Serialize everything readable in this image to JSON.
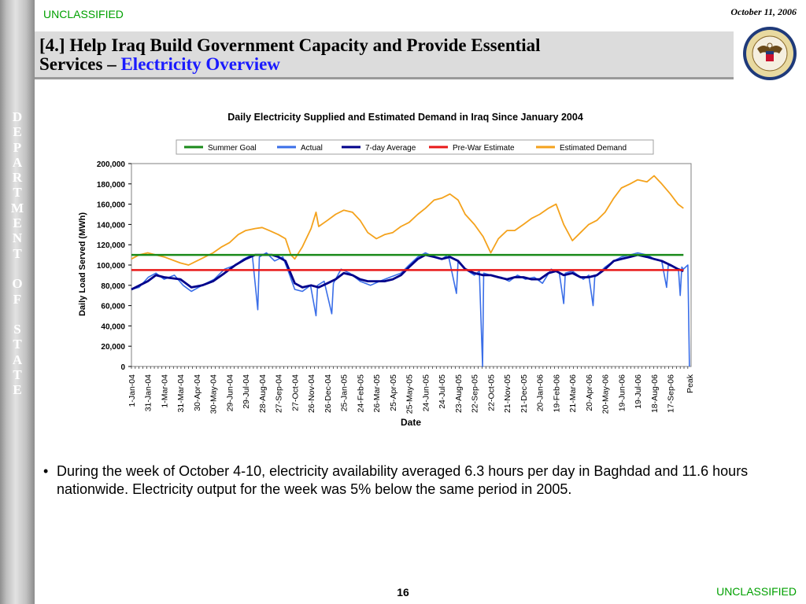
{
  "header": {
    "classification_top": "UNCLASSIFIED",
    "date": "October 11, 2006",
    "title_line1": "[4.] Help Iraq Build Government Capacity and Provide Essential",
    "title_line2_prefix": "Services – ",
    "title_line2_highlight": "Electricity Overview",
    "seal_label": "Department of State seal"
  },
  "sidebar": {
    "text": "DEPARTMENT OF STATE"
  },
  "bullet": {
    "text": "During the week of October 4-10, electricity availability averaged 6.3 hours per day in Baghdad and 11.6 hours nationwide.  Electricity output for the week was 5% below the same period in 2005."
  },
  "footer": {
    "page_number": "16",
    "classification_bottom": "UNCLASSIFIED"
  },
  "colors": {
    "summer_goal": "#1a8a1a",
    "actual": "#3a6ee8",
    "seven_day": "#00008b",
    "pre_war": "#e81818",
    "demand": "#f4a21c",
    "classification": "#00a000",
    "title_highlight": "#1a1aff"
  },
  "chart_data": {
    "type": "line",
    "title": "Daily Electricity Supplied and Estimated Demand in Iraq Since January 2004",
    "xlabel": "Date",
    "ylabel": "Daily Load Served (MWh)",
    "ylim": [
      0,
      200000
    ],
    "yticks": [
      0,
      20000,
      40000,
      60000,
      80000,
      100000,
      120000,
      140000,
      160000,
      180000,
      200000
    ],
    "ytick_labels": [
      "0",
      "20,000",
      "40,000",
      "60,000",
      "80,000",
      "100,000",
      "120,000",
      "140,000",
      "160,000",
      "180,000",
      "200,000"
    ],
    "x_axis_type": "date",
    "xlim": [
      "2004-01-01",
      "2006-10-25"
    ],
    "xtick_labels": [
      "1-Jan-04",
      "31-Jan-04",
      "1-Mar-04",
      "31-Mar-04",
      "30-Apr-04",
      "30-May-04",
      "29-Jun-04",
      "29-Jul-04",
      "28-Aug-04",
      "27-Sep-04",
      "27-Oct-04",
      "26-Nov-04",
      "26-Dec-04",
      "25-Jan-05",
      "24-Feb-05",
      "26-Mar-05",
      "25-Apr-05",
      "25-May-05",
      "24-Jun-05",
      "24-Jul-05",
      "23-Aug-05",
      "22-Sep-05",
      "22-Oct-05",
      "21-Nov-05",
      "21-Dec-05",
      "20-Jan-06",
      "19-Feb-06",
      "21-Mar-06",
      "20-Apr-06",
      "20-May-06",
      "19-Jun-06",
      "19-Jul-06",
      "18-Aug-06",
      "17-Sep-06",
      "Peak"
    ],
    "grid": false,
    "legend_position": "top",
    "series": [
      {
        "name": "Summer Goal",
        "color": "#1a8a1a",
        "points": [
          [
            "2004-01-01",
            110000
          ],
          [
            "2006-10-11",
            110000
          ]
        ]
      },
      {
        "name": "Actual",
        "color": "#3a6ee8",
        "points": [
          [
            "2004-01-01",
            76000
          ],
          [
            "2004-01-15",
            78000
          ],
          [
            "2004-02-01",
            88000
          ],
          [
            "2004-02-15",
            92000
          ],
          [
            "2004-03-01",
            86000
          ],
          [
            "2004-03-20",
            90000
          ],
          [
            "2004-04-05",
            80000
          ],
          [
            "2004-04-20",
            74000
          ],
          [
            "2004-05-10",
            80000
          ],
          [
            "2004-06-01",
            86000
          ],
          [
            "2004-06-20",
            96000
          ],
          [
            "2004-07-10",
            100000
          ],
          [
            "2004-07-25",
            106000
          ],
          [
            "2004-08-10",
            110000
          ],
          [
            "2004-08-20",
            56000
          ],
          [
            "2004-08-23",
            108000
          ],
          [
            "2004-09-05",
            112000
          ],
          [
            "2004-09-20",
            104000
          ],
          [
            "2004-10-05",
            108000
          ],
          [
            "2004-10-15",
            94000
          ],
          [
            "2004-10-27",
            76000
          ],
          [
            "2004-11-10",
            74000
          ],
          [
            "2004-11-25",
            80000
          ],
          [
            "2004-12-05",
            50000
          ],
          [
            "2004-12-08",
            80000
          ],
          [
            "2004-12-20",
            84000
          ],
          [
            "2005-01-03",
            52000
          ],
          [
            "2005-01-06",
            82000
          ],
          [
            "2005-01-20",
            96000
          ],
          [
            "2005-02-05",
            92000
          ],
          [
            "2005-02-24",
            84000
          ],
          [
            "2005-03-15",
            80000
          ],
          [
            "2005-04-01",
            84000
          ],
          [
            "2005-04-20",
            88000
          ],
          [
            "2005-05-10",
            92000
          ],
          [
            "2005-05-25",
            100000
          ],
          [
            "2005-06-10",
            108000
          ],
          [
            "2005-06-24",
            112000
          ],
          [
            "2005-07-10",
            108000
          ],
          [
            "2005-07-24",
            106000
          ],
          [
            "2005-08-05",
            110000
          ],
          [
            "2005-08-20",
            72000
          ],
          [
            "2005-08-23",
            104000
          ],
          [
            "2005-09-05",
            96000
          ],
          [
            "2005-09-22",
            90000
          ],
          [
            "2005-10-01",
            94000
          ],
          [
            "2005-10-07",
            0
          ],
          [
            "2005-10-09",
            92000
          ],
          [
            "2005-10-22",
            90000
          ],
          [
            "2005-11-10",
            88000
          ],
          [
            "2005-11-25",
            84000
          ],
          [
            "2005-12-10",
            90000
          ],
          [
            "2005-12-25",
            86000
          ],
          [
            "2006-01-10",
            88000
          ],
          [
            "2006-01-25",
            82000
          ],
          [
            "2006-02-10",
            96000
          ],
          [
            "2006-02-25",
            92000
          ],
          [
            "2006-03-05",
            62000
          ],
          [
            "2006-03-08",
            92000
          ],
          [
            "2006-03-21",
            94000
          ],
          [
            "2006-04-10",
            86000
          ],
          [
            "2006-04-20",
            90000
          ],
          [
            "2006-04-28",
            60000
          ],
          [
            "2006-05-01",
            88000
          ],
          [
            "2006-05-20",
            98000
          ],
          [
            "2006-06-05",
            104000
          ],
          [
            "2006-06-19",
            108000
          ],
          [
            "2006-07-05",
            110000
          ],
          [
            "2006-07-19",
            112000
          ],
          [
            "2006-08-05",
            110000
          ],
          [
            "2006-08-18",
            106000
          ],
          [
            "2006-09-01",
            104000
          ],
          [
            "2006-09-10",
            78000
          ],
          [
            "2006-09-13",
            100000
          ],
          [
            "2006-09-25",
            98000
          ],
          [
            "2006-10-02",
            94000
          ],
          [
            "2006-10-05",
            70000
          ],
          [
            "2006-10-08",
            98000
          ],
          [
            "2006-10-11",
            96000
          ],
          [
            "2006-10-19",
            100000
          ],
          [
            "2006-10-22",
            0
          ]
        ]
      },
      {
        "name": "7-day Average",
        "color": "#00008b",
        "points": [
          [
            "2004-01-01",
            76000
          ],
          [
            "2004-01-31",
            84000
          ],
          [
            "2004-02-15",
            90000
          ],
          [
            "2004-03-01",
            88000
          ],
          [
            "2004-03-31",
            86000
          ],
          [
            "2004-04-20",
            78000
          ],
          [
            "2004-05-10",
            80000
          ],
          [
            "2004-05-30",
            84000
          ],
          [
            "2004-06-20",
            92000
          ],
          [
            "2004-07-10",
            100000
          ],
          [
            "2004-07-29",
            106000
          ],
          [
            "2004-08-15",
            110000
          ],
          [
            "2004-08-28",
            110000
          ],
          [
            "2004-09-15",
            110000
          ],
          [
            "2004-09-27",
            108000
          ],
          [
            "2004-10-10",
            104000
          ],
          [
            "2004-10-27",
            82000
          ],
          [
            "2004-11-10",
            78000
          ],
          [
            "2004-11-26",
            80000
          ],
          [
            "2004-12-10",
            78000
          ],
          [
            "2004-12-26",
            82000
          ],
          [
            "2005-01-10",
            86000
          ],
          [
            "2005-01-25",
            92000
          ],
          [
            "2005-02-10",
            90000
          ],
          [
            "2005-02-24",
            86000
          ],
          [
            "2005-03-10",
            84000
          ],
          [
            "2005-03-26",
            84000
          ],
          [
            "2005-04-10",
            84000
          ],
          [
            "2005-04-25",
            86000
          ],
          [
            "2005-05-10",
            90000
          ],
          [
            "2005-05-25",
            98000
          ],
          [
            "2005-06-10",
            106000
          ],
          [
            "2005-06-24",
            110000
          ],
          [
            "2005-07-10",
            108000
          ],
          [
            "2005-07-24",
            106000
          ],
          [
            "2005-08-08",
            108000
          ],
          [
            "2005-08-23",
            104000
          ],
          [
            "2005-09-05",
            96000
          ],
          [
            "2005-09-22",
            92000
          ],
          [
            "2005-10-08",
            90000
          ],
          [
            "2005-10-22",
            90000
          ],
          [
            "2005-11-05",
            88000
          ],
          [
            "2005-11-21",
            86000
          ],
          [
            "2005-12-05",
            88000
          ],
          [
            "2005-12-21",
            88000
          ],
          [
            "2006-01-05",
            86000
          ],
          [
            "2006-01-20",
            86000
          ],
          [
            "2006-02-05",
            92000
          ],
          [
            "2006-02-19",
            94000
          ],
          [
            "2006-03-05",
            90000
          ],
          [
            "2006-03-21",
            92000
          ],
          [
            "2006-04-05",
            88000
          ],
          [
            "2006-04-20",
            88000
          ],
          [
            "2006-05-05",
            90000
          ],
          [
            "2006-05-20",
            96000
          ],
          [
            "2006-06-05",
            104000
          ],
          [
            "2006-06-19",
            106000
          ],
          [
            "2006-07-05",
            108000
          ],
          [
            "2006-07-19",
            110000
          ],
          [
            "2006-08-05",
            108000
          ],
          [
            "2006-08-18",
            106000
          ],
          [
            "2006-09-01",
            104000
          ],
          [
            "2006-09-17",
            100000
          ],
          [
            "2006-10-01",
            96000
          ],
          [
            "2006-10-11",
            94000
          ]
        ]
      },
      {
        "name": "Pre-War Estimate",
        "color": "#e81818",
        "points": [
          [
            "2004-01-01",
            95000
          ],
          [
            "2006-10-11",
            95000
          ]
        ]
      },
      {
        "name": "Estimated Demand",
        "color": "#f4a21c",
        "points": [
          [
            "2004-01-01",
            106000
          ],
          [
            "2004-01-15",
            110000
          ],
          [
            "2004-01-31",
            112000
          ],
          [
            "2004-02-15",
            110000
          ],
          [
            "2004-03-01",
            108000
          ],
          [
            "2004-03-31",
            102000
          ],
          [
            "2004-04-15",
            100000
          ],
          [
            "2004-04-30",
            104000
          ],
          [
            "2004-05-15",
            108000
          ],
          [
            "2004-05-30",
            112000
          ],
          [
            "2004-06-15",
            118000
          ],
          [
            "2004-06-29",
            122000
          ],
          [
            "2004-07-15",
            130000
          ],
          [
            "2004-07-29",
            134000
          ],
          [
            "2004-08-15",
            136000
          ],
          [
            "2004-08-28",
            137000
          ],
          [
            "2004-09-10",
            134000
          ],
          [
            "2004-09-27",
            130000
          ],
          [
            "2004-10-10",
            126000
          ],
          [
            "2004-10-20",
            110000
          ],
          [
            "2004-10-27",
            106000
          ],
          [
            "2004-11-10",
            118000
          ],
          [
            "2004-11-26",
            136000
          ],
          [
            "2004-12-05",
            152000
          ],
          [
            "2004-12-10",
            138000
          ],
          [
            "2004-12-26",
            144000
          ],
          [
            "2005-01-10",
            150000
          ],
          [
            "2005-01-25",
            154000
          ],
          [
            "2005-02-10",
            152000
          ],
          [
            "2005-02-24",
            144000
          ],
          [
            "2005-03-10",
            132000
          ],
          [
            "2005-03-26",
            126000
          ],
          [
            "2005-04-10",
            130000
          ],
          [
            "2005-04-25",
            132000
          ],
          [
            "2005-05-10",
            138000
          ],
          [
            "2005-05-25",
            142000
          ],
          [
            "2005-06-10",
            150000
          ],
          [
            "2005-06-24",
            156000
          ],
          [
            "2005-07-10",
            164000
          ],
          [
            "2005-07-24",
            166000
          ],
          [
            "2005-08-08",
            170000
          ],
          [
            "2005-08-23",
            164000
          ],
          [
            "2005-09-05",
            150000
          ],
          [
            "2005-09-22",
            140000
          ],
          [
            "2005-10-08",
            128000
          ],
          [
            "2005-10-22",
            112000
          ],
          [
            "2005-11-05",
            126000
          ],
          [
            "2005-11-21",
            134000
          ],
          [
            "2005-12-05",
            134000
          ],
          [
            "2005-12-21",
            140000
          ],
          [
            "2006-01-05",
            146000
          ],
          [
            "2006-01-20",
            150000
          ],
          [
            "2006-02-05",
            156000
          ],
          [
            "2006-02-19",
            160000
          ],
          [
            "2006-03-05",
            140000
          ],
          [
            "2006-03-21",
            124000
          ],
          [
            "2006-04-05",
            132000
          ],
          [
            "2006-04-20",
            140000
          ],
          [
            "2006-05-05",
            144000
          ],
          [
            "2006-05-20",
            152000
          ],
          [
            "2006-06-05",
            166000
          ],
          [
            "2006-06-19",
            176000
          ],
          [
            "2006-07-05",
            180000
          ],
          [
            "2006-07-19",
            184000
          ],
          [
            "2006-08-05",
            182000
          ],
          [
            "2006-08-18",
            188000
          ],
          [
            "2006-09-01",
            180000
          ],
          [
            "2006-09-17",
            170000
          ],
          [
            "2006-10-01",
            160000
          ],
          [
            "2006-10-11",
            156000
          ]
        ]
      }
    ]
  }
}
